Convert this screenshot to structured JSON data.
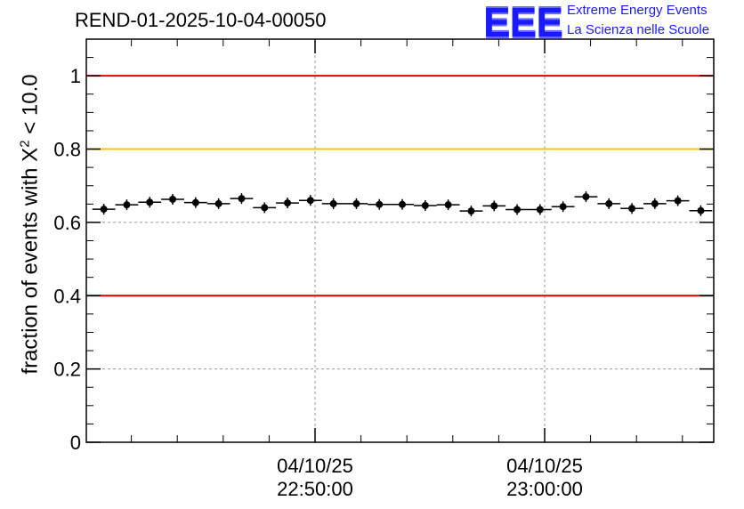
{
  "header": {
    "run_title": "REND-01-2025-10-04-00050"
  },
  "logo": {
    "mark": "EEE",
    "line1": "Extreme Energy Events",
    "line2": "La Scienza nelle Scuole",
    "color": "#1a1aff"
  },
  "chart_data": {
    "type": "scatter",
    "title": "REND-01-2025-10-04-00050",
    "ylabel_prefix": "fraction of events with ",
    "ylabel_symbol": "X",
    "ylabel_sup": "2",
    "ylabel_suffix": " < 10.0",
    "xlabel": "",
    "xlim_minutes": [
      -9.7,
      17.5
    ],
    "ylim": [
      0,
      1.1
    ],
    "y_ticks": [
      0,
      0.2,
      0.4,
      0.6,
      0.8,
      1
    ],
    "y_tick_labels": [
      "0",
      "0.2",
      "0.4",
      "0.6",
      "0.8",
      "1"
    ],
    "x_major_ticks": [
      {
        "minute": 0,
        "date": "04/10/25",
        "time": "22:50:00"
      },
      {
        "minute": 10,
        "date": "04/10/25",
        "time": "23:00:00"
      }
    ],
    "grid": true,
    "reference_lines": [
      {
        "y": 1.0,
        "color": "#e00000"
      },
      {
        "y": 0.8,
        "color": "#ffc000"
      },
      {
        "y": 0.4,
        "color": "#e00000"
      }
    ],
    "bin_width_minutes": 1,
    "x": [
      -9.2,
      -8.2,
      -7.2,
      -6.2,
      -5.2,
      -4.2,
      -3.2,
      -2.2,
      -1.2,
      -0.2,
      0.8,
      1.8,
      2.8,
      3.8,
      4.8,
      5.8,
      6.8,
      7.8,
      8.8,
      9.8,
      10.8,
      11.8,
      12.8,
      13.8,
      14.8,
      15.8,
      16.8
    ],
    "values": [
      0.636,
      0.648,
      0.655,
      0.663,
      0.654,
      0.651,
      0.665,
      0.64,
      0.653,
      0.66,
      0.651,
      0.651,
      0.649,
      0.649,
      0.646,
      0.648,
      0.631,
      0.645,
      0.635,
      0.635,
      0.643,
      0.67,
      0.651,
      0.638,
      0.651,
      0.659,
      0.632
    ],
    "marker_color": "#000000"
  }
}
